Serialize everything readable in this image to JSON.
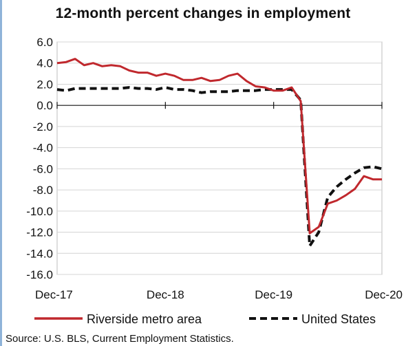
{
  "chart_data": {
    "type": "line",
    "title": "12-month percent changes in employment",
    "x": [
      "Dec-17",
      "Jan-18",
      "Feb-18",
      "Mar-18",
      "Apr-18",
      "May-18",
      "Jun-18",
      "Jul-18",
      "Aug-18",
      "Sep-18",
      "Oct-18",
      "Nov-18",
      "Dec-18",
      "Jan-19",
      "Feb-19",
      "Mar-19",
      "Apr-19",
      "May-19",
      "Jun-19",
      "Jul-19",
      "Aug-19",
      "Sep-19",
      "Oct-19",
      "Nov-19",
      "Dec-19",
      "Jan-20",
      "Feb-20",
      "Mar-20",
      "Apr-20",
      "May-20",
      "Jun-20",
      "Jul-20",
      "Aug-20",
      "Sep-20",
      "Oct-20",
      "Nov-20",
      "Dec-20"
    ],
    "x_tick_labels": [
      "Dec-17",
      "Dec-18",
      "Dec-19",
      "Dec-20"
    ],
    "series": [
      {
        "name": "Riverside metro area",
        "color": "#c0282d",
        "style": "solid",
        "values": [
          4.0,
          4.1,
          4.4,
          3.8,
          4.0,
          3.7,
          3.8,
          3.7,
          3.3,
          3.1,
          3.1,
          2.8,
          3.0,
          2.8,
          2.4,
          2.4,
          2.6,
          2.3,
          2.4,
          2.8,
          3.0,
          2.3,
          1.8,
          1.7,
          1.4,
          1.4,
          1.7,
          0.4,
          -12.1,
          -11.5,
          -9.3,
          -9.0,
          -8.5,
          -7.9,
          -6.7,
          -7.0,
          -7.0
        ]
      },
      {
        "name": "United States",
        "color": "#111111",
        "style": "dashed",
        "values": [
          1.5,
          1.4,
          1.6,
          1.6,
          1.6,
          1.6,
          1.6,
          1.6,
          1.7,
          1.6,
          1.6,
          1.5,
          1.7,
          1.5,
          1.5,
          1.4,
          1.2,
          1.3,
          1.3,
          1.3,
          1.4,
          1.4,
          1.4,
          1.5,
          1.5,
          1.5,
          1.5,
          0.5,
          -13.3,
          -12.0,
          -8.7,
          -7.7,
          -7.0,
          -6.4,
          -5.9,
          -5.8,
          -6.0
        ]
      }
    ],
    "y_ticks": [
      6.0,
      4.0,
      2.0,
      0.0,
      -2.0,
      -4.0,
      -6.0,
      -8.0,
      -10.0,
      -12.0,
      -14.0,
      -16.0
    ],
    "ylim": [
      -16,
      6
    ],
    "xlabel": "",
    "ylabel": "",
    "grid": "horizontal",
    "grid_color": "#d4d4d4",
    "legend": "bottom",
    "source": "Source: U.S. BLS, Current Employment Statistics."
  }
}
